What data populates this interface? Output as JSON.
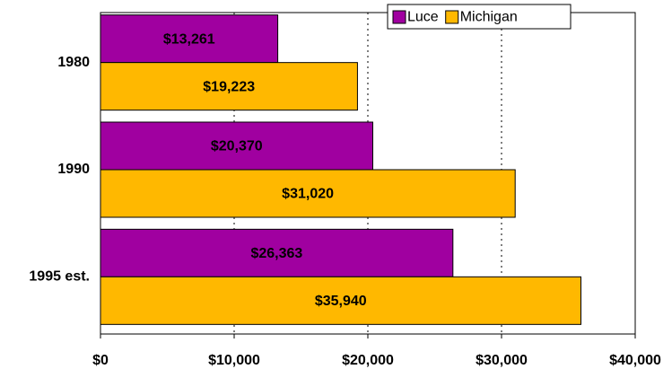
{
  "chart_data": {
    "type": "hbar",
    "categories": [
      "1980",
      "1990",
      "1995 est."
    ],
    "series": [
      {
        "name": "Luce",
        "color": "#a000a0",
        "values": [
          13261,
          20370,
          26363
        ],
        "value_labels": [
          "$13,261",
          "$20,370",
          "$26,363"
        ]
      },
      {
        "name": "Michigan",
        "color": "#ffb800",
        "values": [
          19223,
          31020,
          35940
        ],
        "value_labels": [
          "$19,223",
          "$31,020",
          "$35,940"
        ]
      }
    ],
    "xlim": [
      0,
      40000
    ],
    "xticks": [
      {
        "value": 0,
        "label": "$0"
      },
      {
        "value": 10000,
        "label": "$10,000"
      },
      {
        "value": 20000,
        "label": "$20,000"
      },
      {
        "value": 30000,
        "label": "$30,000"
      },
      {
        "value": 40000,
        "label": "$40,000"
      }
    ],
    "grid": true,
    "legend": "top-right"
  }
}
